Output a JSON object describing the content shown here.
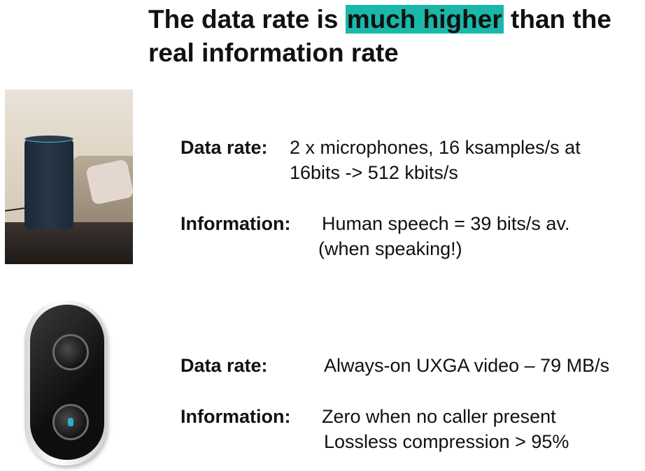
{
  "title": {
    "part1": "The data rate is ",
    "highlight": "much higher",
    "part2": " than the real information rate"
  },
  "images": {
    "speaker": "smart-speaker-photo",
    "doorbell": "video-doorbell-photo"
  },
  "section1": {
    "data_label": "Data rate:",
    "data_line1": "2 x microphones, 16 ksamples/s at",
    "data_line2": "16bits -> 512 kbits/s",
    "info_label": "Information:",
    "info_line1": "Human speech = 39 bits/s av.",
    "info_line2": "(when speaking!)"
  },
  "section2": {
    "data_label": "Data rate:",
    "data_line1": "Always-on UXGA video – 79 MB/s",
    "info_label": "Information:",
    "info_line1": "Zero when no caller present",
    "info_line2": "Lossless compression > 95%"
  },
  "colors": {
    "highlight": "#1ab8a9"
  }
}
